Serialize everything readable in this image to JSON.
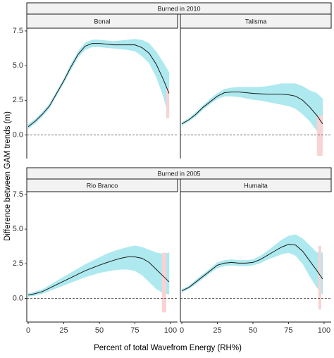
{
  "chart_data": {
    "type": "line",
    "x_label": "Percent of total Wavefrom Energy (RH%)",
    "y_label": "Difference between GAM trends (m)",
    "xlim": [
      -1,
      105
    ],
    "xticks": [
      0,
      25,
      50,
      75,
      100
    ],
    "ylim": [
      -1.7,
      7.7
    ],
    "yticks": [
      {
        "value": 0,
        "label": "0.0"
      },
      2.5,
      {
        "value": 5,
        "label": "5.0"
      },
      7.5
    ],
    "hline": 0,
    "line_color": "#1a1a1a",
    "band_color": "#aee9ef",
    "tail_color": "#f9d3d3",
    "x": [
      0,
      5,
      10,
      15,
      20,
      25,
      30,
      35,
      40,
      45,
      50,
      55,
      60,
      65,
      70,
      75,
      80,
      85,
      90,
      95,
      99
    ],
    "groups": [
      {
        "title": "Burned in 2010",
        "panels": [
          {
            "title": "Bonal",
            "values": [
              0.6,
              1.0,
              1.5,
              2.1,
              3.0,
              3.9,
              4.9,
              5.8,
              6.4,
              6.6,
              6.6,
              6.55,
              6.5,
              6.5,
              6.5,
              6.5,
              6.3,
              5.9,
              5.1,
              4.0,
              3.0
            ],
            "lower": [
              0.45,
              0.85,
              1.35,
              1.95,
              2.85,
              3.75,
              4.7,
              5.6,
              6.15,
              6.35,
              6.35,
              6.3,
              6.25,
              6.2,
              6.15,
              6.05,
              5.7,
              5.2,
              4.2,
              2.8,
              1.3
            ],
            "upper": [
              0.75,
              1.15,
              1.65,
              2.25,
              3.15,
              4.05,
              5.1,
              6.0,
              6.65,
              6.85,
              6.85,
              6.8,
              6.75,
              6.8,
              6.85,
              6.9,
              6.85,
              6.6,
              6.0,
              5.2,
              4.5
            ],
            "tail": {
              "x": [
                97,
                99
              ],
              "lower": 1.2,
              "upper": 3.4
            }
          },
          {
            "title": "Talisma",
            "values": [
              0.8,
              1.1,
              1.5,
              2.0,
              2.4,
              2.8,
              3.05,
              3.1,
              3.1,
              3.05,
              3.0,
              2.97,
              2.95,
              2.95,
              2.95,
              2.9,
              2.8,
              2.5,
              2.0,
              1.4,
              0.8
            ],
            "lower": [
              0.7,
              1.0,
              1.35,
              1.85,
              2.25,
              2.6,
              2.8,
              2.8,
              2.75,
              2.65,
              2.55,
              2.5,
              2.4,
              2.3,
              2.2,
              2.1,
              1.9,
              1.5,
              1.0,
              0.3,
              -0.3
            ],
            "upper": [
              0.9,
              1.2,
              1.65,
              2.15,
              2.6,
              3.0,
              3.3,
              3.4,
              3.45,
              3.45,
              3.45,
              3.45,
              3.5,
              3.6,
              3.7,
              3.7,
              3.7,
              3.5,
              3.2,
              3.0,
              2.6
            ],
            "tail": {
              "x": [
                95,
                99
              ],
              "lower": -1.5,
              "upper": 1.4
            }
          }
        ]
      },
      {
        "title": "Burned in 2005",
        "panels": [
          {
            "title": "Rio Branco",
            "values": [
              0.25,
              0.35,
              0.5,
              0.75,
              1.0,
              1.25,
              1.5,
              1.75,
              2.0,
              2.2,
              2.4,
              2.58,
              2.75,
              2.9,
              3.0,
              3.0,
              2.9,
              2.6,
              2.1,
              1.6,
              1.2
            ],
            "lower": [
              0.15,
              0.22,
              0.35,
              0.55,
              0.75,
              0.95,
              1.15,
              1.35,
              1.55,
              1.7,
              1.85,
              1.95,
              2.05,
              2.1,
              2.1,
              2.0,
              1.7,
              1.2,
              0.7,
              0.4,
              0.3
            ],
            "upper": [
              0.35,
              0.48,
              0.65,
              0.95,
              1.25,
              1.55,
              1.85,
              2.15,
              2.45,
              2.7,
              2.95,
              3.2,
              3.4,
              3.55,
              3.7,
              3.8,
              3.7,
              3.5,
              3.3,
              3.2,
              3.3
            ],
            "tail": {
              "x": [
                94,
                97
              ],
              "lower": -1.0,
              "upper": 3.3
            }
          },
          {
            "title": "Humaita",
            "values": [
              0.55,
              0.8,
              1.2,
              1.6,
              2.0,
              2.4,
              2.55,
              2.6,
              2.55,
              2.55,
              2.6,
              2.8,
              3.1,
              3.4,
              3.7,
              3.9,
              3.85,
              3.4,
              2.7,
              2.0,
              1.4
            ],
            "lower": [
              0.45,
              0.7,
              1.05,
              1.45,
              1.85,
              2.2,
              2.35,
              2.4,
              2.35,
              2.35,
              2.4,
              2.55,
              2.8,
              3.0,
              3.2,
              3.3,
              3.1,
              2.5,
              1.6,
              0.8,
              0.3
            ],
            "upper": [
              0.65,
              0.9,
              1.35,
              1.75,
              2.15,
              2.6,
              2.75,
              2.8,
              2.75,
              2.75,
              2.8,
              3.05,
              3.4,
              3.8,
              4.2,
              4.5,
              4.6,
              4.3,
              3.8,
              3.3,
              3.3
            ],
            "tail": {
              "x": [
                96,
                98
              ],
              "lower": -0.8,
              "upper": 3.8
            }
          }
        ]
      }
    ]
  }
}
